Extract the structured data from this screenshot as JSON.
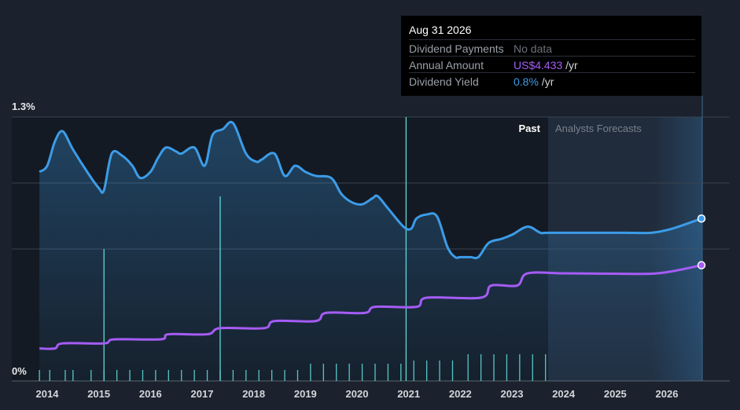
{
  "tooltip": {
    "date": "Aug 31 2026",
    "rows": [
      {
        "label": "Dividend Payments",
        "value": "No data",
        "unit": ""
      },
      {
        "label": "Annual Amount",
        "value": "US$4.433",
        "unit": " /yr"
      },
      {
        "label": "Dividend Yield",
        "value": "0.8%",
        "unit": " /yr"
      }
    ]
  },
  "colors": {
    "background": "#1b222d",
    "yield_line": "#3c9ce8",
    "amount_line": "#a55cf5",
    "payment_bars": "#5fd8d8",
    "forecast_band": "#253347"
  },
  "chart_data": {
    "type": "line",
    "y_axis": {
      "top_label": "1.3%",
      "bottom_label": "0%",
      "ylim": [
        0,
        1.3
      ]
    },
    "x_ticks": [
      "2014",
      "2015",
      "2016",
      "2017",
      "2018",
      "2019",
      "2020",
      "2021",
      "2022",
      "2023",
      "2024",
      "2025",
      "2026"
    ],
    "regions": {
      "past_label": "Past",
      "forecast_label": "Analysts Forecasts",
      "forecast_start": 2023.7
    },
    "series": [
      {
        "key": "dividend_yield",
        "color": "#3c9ce8",
        "points": [
          [
            2013.85,
            1.03
          ],
          [
            2014.0,
            1.06
          ],
          [
            2014.15,
            1.18
          ],
          [
            2014.3,
            1.23
          ],
          [
            2014.5,
            1.14
          ],
          [
            2014.8,
            1.02
          ],
          [
            2015.0,
            0.95
          ],
          [
            2015.1,
            0.94
          ],
          [
            2015.25,
            1.12
          ],
          [
            2015.45,
            1.11
          ],
          [
            2015.65,
            1.06
          ],
          [
            2015.8,
            1.0
          ],
          [
            2016.0,
            1.03
          ],
          [
            2016.15,
            1.1
          ],
          [
            2016.3,
            1.15
          ],
          [
            2016.5,
            1.13
          ],
          [
            2016.6,
            1.12
          ],
          [
            2016.85,
            1.15
          ],
          [
            2017.05,
            1.06
          ],
          [
            2017.2,
            1.21
          ],
          [
            2017.4,
            1.24
          ],
          [
            2017.6,
            1.27
          ],
          [
            2017.85,
            1.12
          ],
          [
            2018.05,
            1.08
          ],
          [
            2018.15,
            1.09
          ],
          [
            2018.4,
            1.12
          ],
          [
            2018.6,
            1.01
          ],
          [
            2018.8,
            1.06
          ],
          [
            2019.0,
            1.03
          ],
          [
            2019.2,
            1.01
          ],
          [
            2019.5,
            1.0
          ],
          [
            2019.7,
            0.92
          ],
          [
            2019.9,
            0.88
          ],
          [
            2020.1,
            0.87
          ],
          [
            2020.3,
            0.9
          ],
          [
            2020.4,
            0.91
          ],
          [
            2020.6,
            0.85
          ],
          [
            2020.9,
            0.76
          ],
          [
            2021.05,
            0.75
          ],
          [
            2021.15,
            0.8
          ],
          [
            2021.35,
            0.82
          ],
          [
            2021.55,
            0.81
          ],
          [
            2021.75,
            0.66
          ],
          [
            2021.9,
            0.61
          ],
          [
            2022.0,
            0.61
          ],
          [
            2022.2,
            0.61
          ],
          [
            2022.35,
            0.61
          ],
          [
            2022.55,
            0.68
          ],
          [
            2022.8,
            0.7
          ],
          [
            2023.0,
            0.72
          ],
          [
            2023.3,
            0.76
          ],
          [
            2023.55,
            0.73
          ],
          [
            2023.7,
            0.73
          ],
          [
            2024.5,
            0.73
          ],
          [
            2025.2,
            0.73
          ],
          [
            2025.7,
            0.73
          ],
          [
            2026.1,
            0.75
          ],
          [
            2026.67,
            0.8
          ]
        ]
      },
      {
        "key": "annual_amount",
        "color": "#a55cf5",
        "points": [
          [
            2013.85,
            0.16
          ],
          [
            2014.15,
            0.16
          ],
          [
            2014.3,
            0.185
          ],
          [
            2015.1,
            0.185
          ],
          [
            2015.3,
            0.205
          ],
          [
            2016.2,
            0.205
          ],
          [
            2016.35,
            0.23
          ],
          [
            2017.1,
            0.23
          ],
          [
            2017.35,
            0.26
          ],
          [
            2018.2,
            0.26
          ],
          [
            2018.4,
            0.295
          ],
          [
            2019.2,
            0.295
          ],
          [
            2019.4,
            0.335
          ],
          [
            2020.15,
            0.335
          ],
          [
            2020.35,
            0.365
          ],
          [
            2021.15,
            0.365
          ],
          [
            2021.35,
            0.41
          ],
          [
            2022.4,
            0.41
          ],
          [
            2022.6,
            0.47
          ],
          [
            2023.1,
            0.47
          ],
          [
            2023.3,
            0.53
          ],
          [
            2024.0,
            0.53
          ],
          [
            2025.0,
            0.528
          ],
          [
            2025.7,
            0.528
          ],
          [
            2026.1,
            0.54
          ],
          [
            2026.67,
            0.57
          ]
        ]
      }
    ],
    "payment_marks": [
      2013.85,
      2014.05,
      2014.35,
      2014.5,
      2014.85,
      2015.1,
      2015.35,
      2015.6,
      2015.85,
      2016.1,
      2016.35,
      2016.6,
      2016.85,
      2017.1,
      2017.35,
      2017.6,
      2017.85,
      2018.1,
      2018.35,
      2018.6,
      2018.85,
      2019.1,
      2019.35,
      2019.6,
      2019.85,
      2020.1,
      2020.35,
      2020.6,
      2020.85,
      2021.1,
      2021.35,
      2021.6,
      2021.85,
      2022.15,
      2022.4,
      2022.65,
      2022.9,
      2023.15,
      2023.4,
      2023.65
    ],
    "highlight_marks": [
      2015.1,
      2017.35
    ],
    "cursor_x": 2020.95
  }
}
